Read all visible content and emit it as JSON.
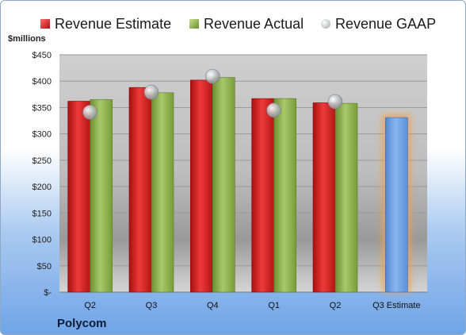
{
  "chart_data": {
    "type": "bar",
    "ylabel": "$millions",
    "ylim": [
      0,
      450
    ],
    "y_ticks": [
      "$-",
      "$50",
      "$100",
      "$150",
      "$200",
      "$250",
      "$300",
      "$350",
      "$400",
      "$450"
    ],
    "categories": [
      "Q2",
      "Q3",
      "Q4",
      "Q1",
      "Q2",
      "Q3 Estimate"
    ],
    "series": [
      {
        "name": "Revenue Estimate",
        "kind": "bar",
        "color": "#d61f1f",
        "values": [
          362,
          388,
          402,
          367,
          359,
          null
        ]
      },
      {
        "name": "Revenue Actual",
        "kind": "bar",
        "color": "#8cb44f",
        "values": [
          365,
          378,
          407,
          367,
          358,
          null
        ]
      },
      {
        "name": "Revenue GAAP",
        "kind": "marker",
        "color": "#b5b8bc",
        "values": [
          341,
          379,
          409,
          345,
          361,
          null
        ]
      }
    ],
    "estimate_bar": {
      "category": "Q3 Estimate",
      "value": 331,
      "color": "#6d9fe0",
      "glow": "#f0a050"
    },
    "grid": true,
    "legend_position": "top"
  },
  "footer": {
    "company": "Polycom"
  }
}
